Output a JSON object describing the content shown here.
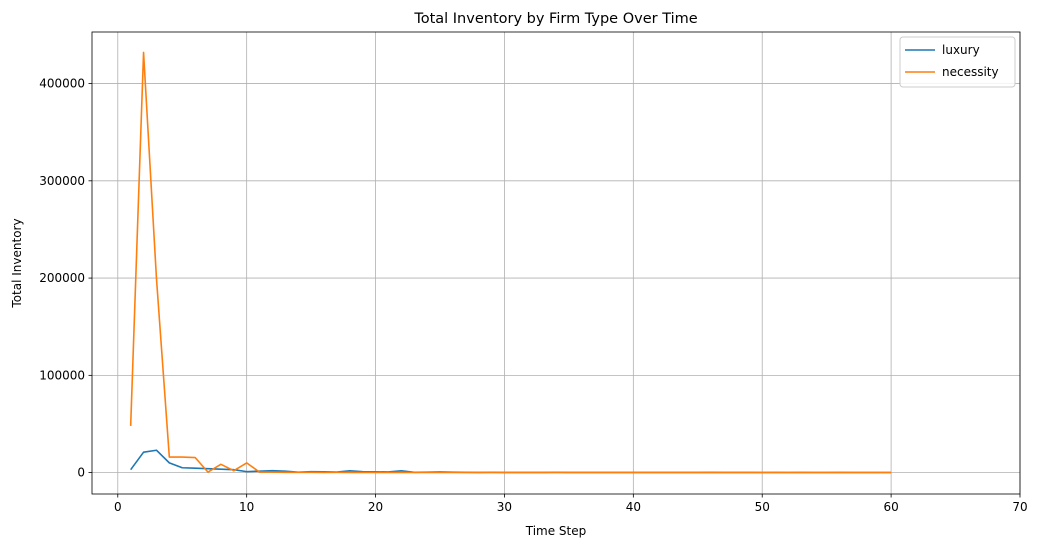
{
  "chart_data": {
    "type": "line",
    "title": "Total Inventory by Firm Type Over Time",
    "xlabel": "Time Step",
    "ylabel": "Total Inventory",
    "xlim": [
      -2,
      70
    ],
    "ylim": [
      -22000,
      453000
    ],
    "xticks": [
      0,
      10,
      20,
      30,
      40,
      50,
      60,
      70
    ],
    "xtick_labels": [
      "0",
      "10",
      "20",
      "30",
      "40",
      "50",
      "60",
      "70"
    ],
    "yticks": [
      0,
      100000,
      200000,
      300000,
      400000
    ],
    "ytick_labels": [
      "0",
      "100000",
      "200000",
      "300000",
      "400000"
    ],
    "grid": true,
    "legend_position": "top-right",
    "x": [
      1,
      2,
      3,
      4,
      5,
      6,
      7,
      8,
      9,
      10,
      11,
      12,
      13,
      14,
      15,
      16,
      17,
      18,
      19,
      20,
      21,
      22,
      23,
      24,
      25,
      26,
      27,
      28,
      29,
      30,
      31,
      32,
      33,
      34,
      35,
      36,
      37,
      38,
      39,
      40,
      41,
      42,
      43,
      44,
      45,
      46,
      47,
      48,
      49,
      50,
      51,
      52,
      53,
      54,
      55,
      56,
      57,
      58,
      59,
      60
    ],
    "series": [
      {
        "name": "luxury",
        "color": "#1f77b4",
        "values": [
          3000,
          21000,
          23000,
          10000,
          5000,
          4500,
          4000,
          3500,
          3000,
          1000,
          1500,
          2000,
          1500,
          500,
          1000,
          800,
          600,
          1800,
          900,
          800,
          700,
          1800,
          300,
          500,
          700,
          400,
          300,
          200,
          300,
          200,
          200,
          150,
          200,
          300,
          200,
          200,
          200,
          150,
          200,
          200,
          150,
          150,
          150,
          150,
          150,
          300,
          150,
          150,
          150,
          100,
          150,
          100,
          150,
          100,
          100,
          150,
          100,
          100,
          100,
          100
        ]
      },
      {
        "name": "necessity",
        "color": "#ff7f0e",
        "values": [
          48000,
          432000,
          200000,
          16000,
          16000,
          15500,
          500,
          8500,
          2000,
          10000,
          500,
          500,
          300,
          300,
          300,
          200,
          300,
          200,
          200,
          200,
          200,
          200,
          200,
          200,
          150,
          200,
          150,
          150,
          200,
          150,
          150,
          150,
          150,
          150,
          150,
          150,
          150,
          150,
          150,
          150,
          150,
          150,
          150,
          150,
          150,
          150,
          150,
          150,
          150,
          150,
          150,
          150,
          150,
          150,
          150,
          150,
          150,
          150,
          150,
          150
        ]
      }
    ]
  }
}
